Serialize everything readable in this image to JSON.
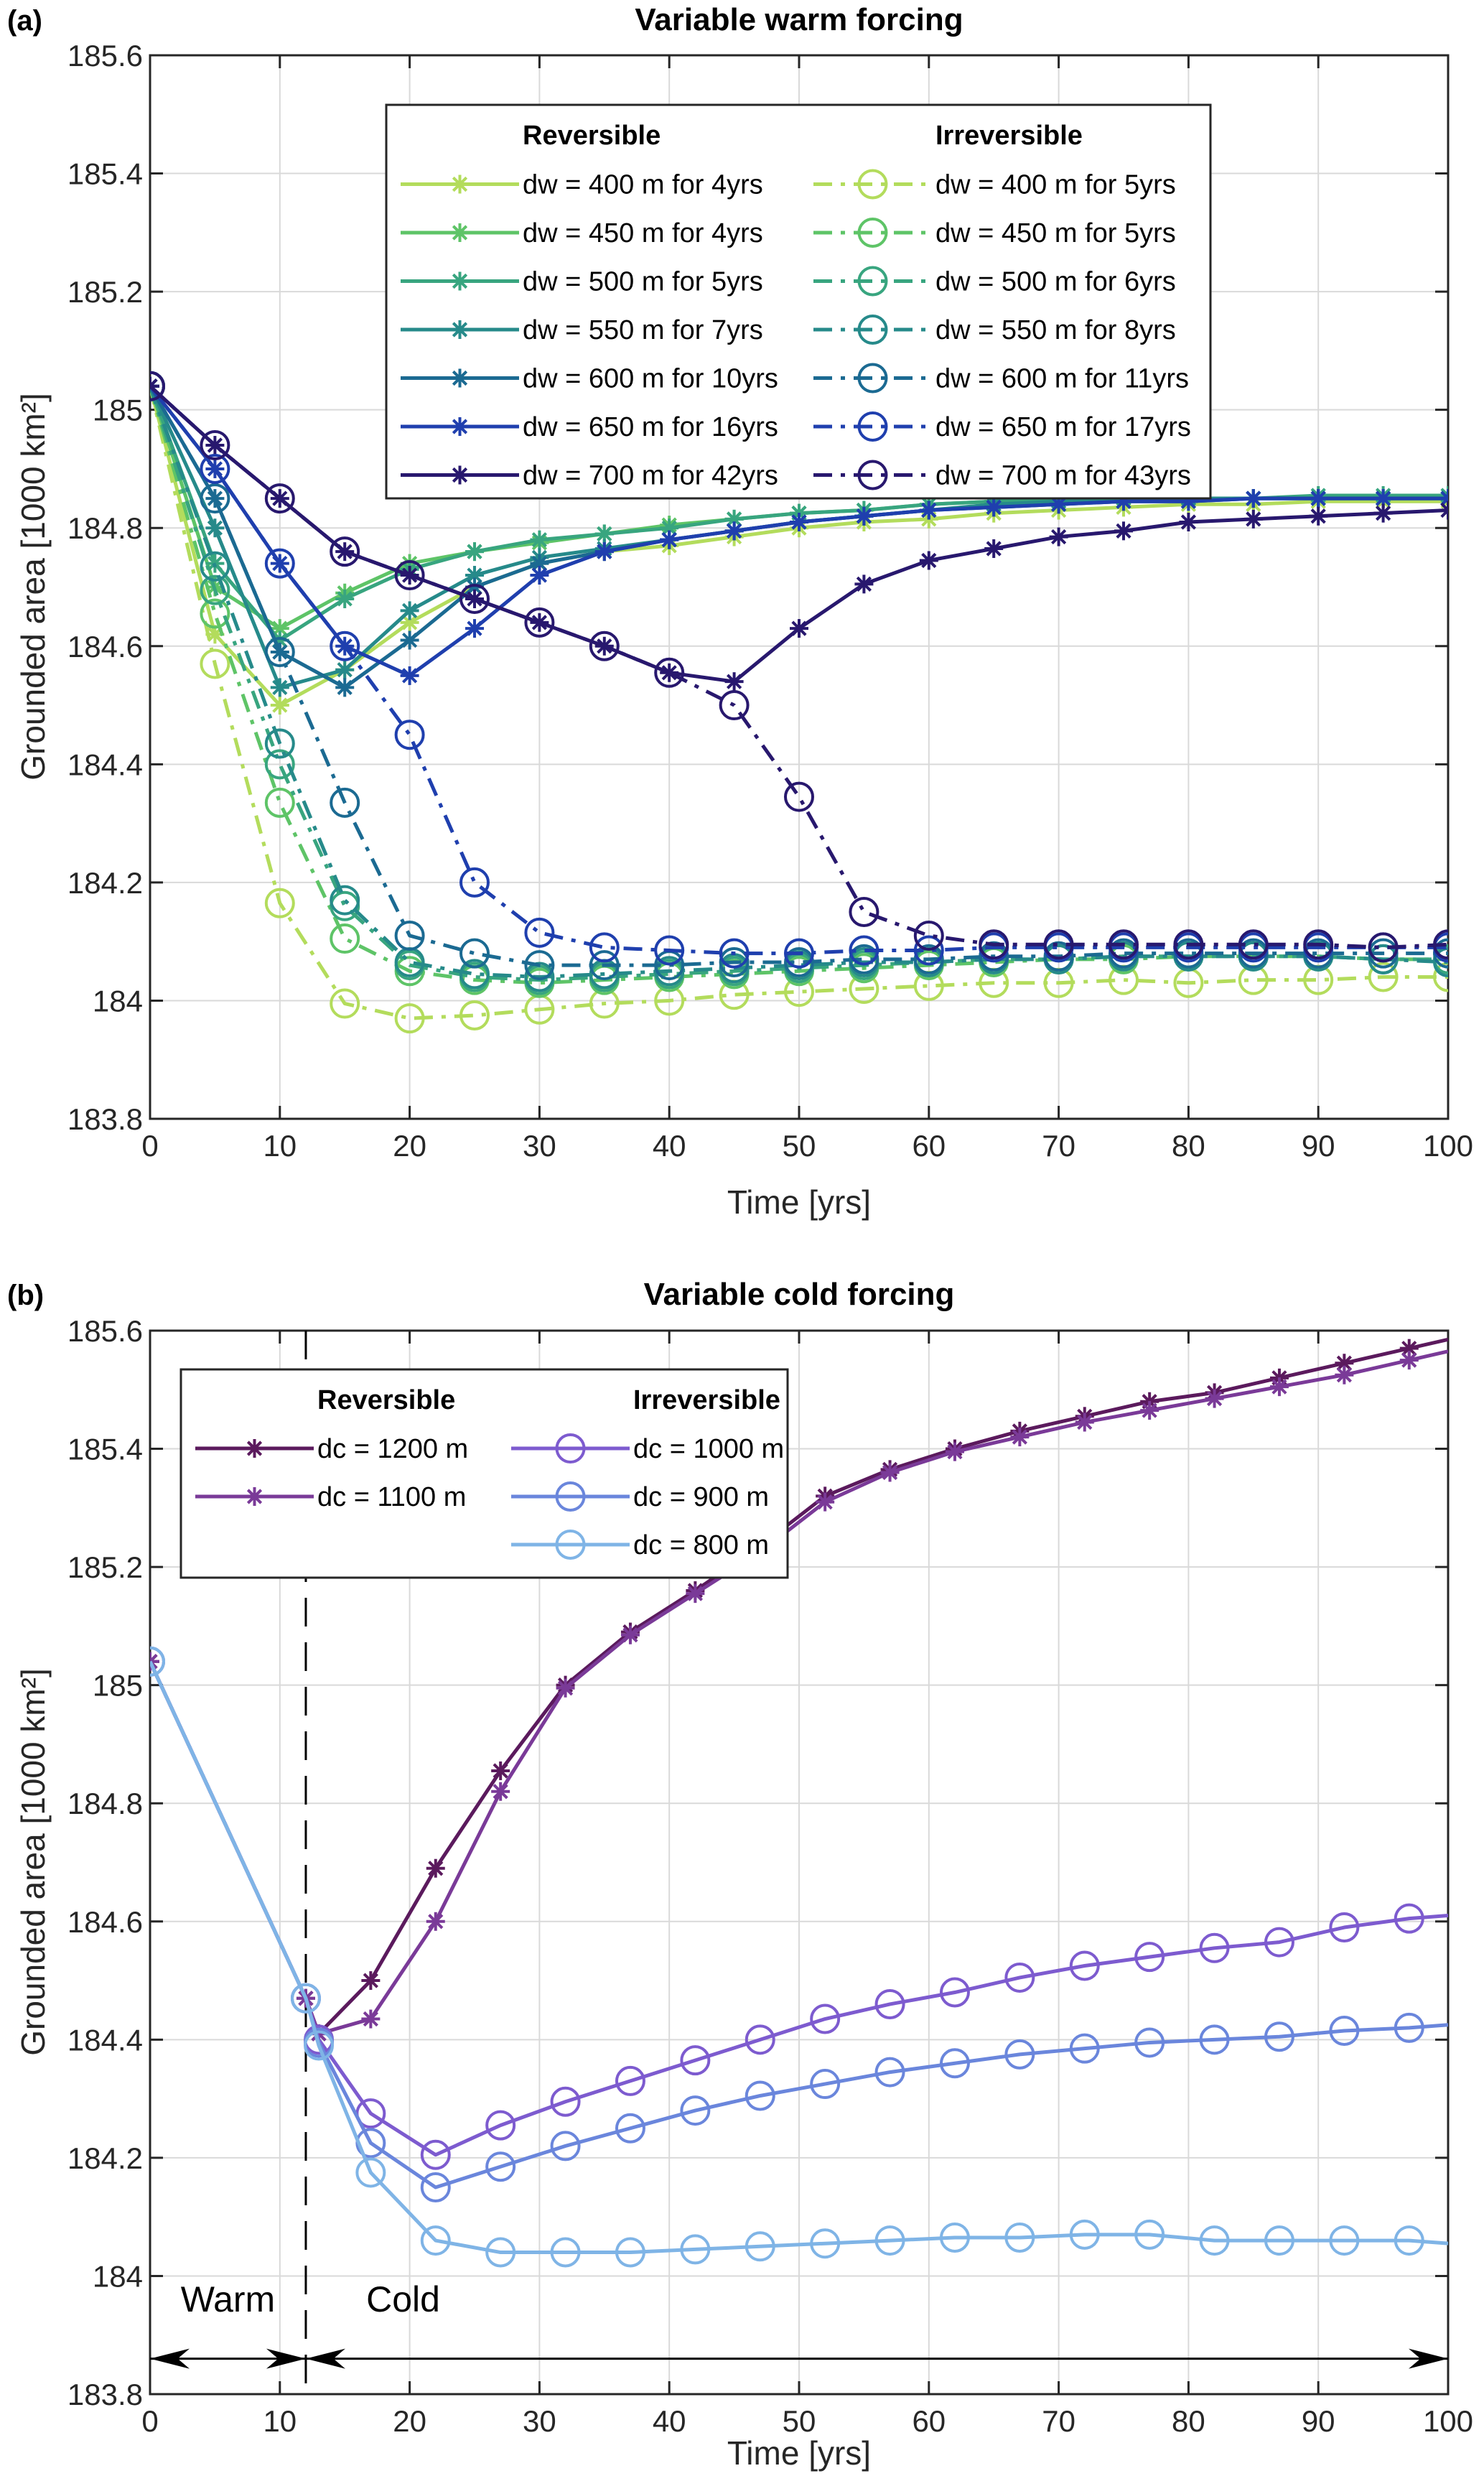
{
  "chart_data": [
    {
      "panel": "(a)",
      "type": "line",
      "title": "Variable warm forcing",
      "xlabel": "Time [yrs]",
      "ylabel": "Grounded area [1000 km²]",
      "xlim": [
        0,
        100
      ],
      "ylim": [
        183.8,
        185.6
      ],
      "xticks": [
        0,
        10,
        20,
        30,
        40,
        50,
        60,
        70,
        80,
        90,
        100
      ],
      "yticks": [
        183.8,
        184,
        184.2,
        184.4,
        184.6,
        184.8,
        185,
        185.2,
        185.4,
        185.6
      ],
      "ytick_labels": [
        "183.8",
        "184",
        "184.2",
        "184.4",
        "184.6",
        "184.8",
        "185",
        "185.2",
        "185.4",
        "185.6"
      ],
      "grid": true,
      "legend": {
        "placement": "top-center",
        "headers": [
          "Reversible",
          "Irreversible"
        ]
      },
      "x": [
        0,
        5,
        10,
        15,
        20,
        25,
        30,
        35,
        40,
        45,
        50,
        55,
        60,
        65,
        70,
        75,
        80,
        85,
        90,
        95,
        100
      ],
      "series": [
        {
          "name": "dw = 400 m for 4yrs",
          "group": "Reversible",
          "color": "#b3dc5c",
          "style": "solid",
          "marker": "asterisk",
          "values": [
            185.04,
            184.62,
            184.5,
            184.56,
            184.64,
            184.7,
            184.74,
            184.76,
            184.77,
            184.785,
            184.8,
            184.81,
            184.815,
            184.825,
            184.83,
            184.835,
            184.84,
            184.84,
            184.845,
            184.845,
            184.845
          ]
        },
        {
          "name": "dw = 450 m for 4yrs",
          "group": "Reversible",
          "color": "#5ec467",
          "style": "solid",
          "marker": "asterisk",
          "values": [
            185.04,
            184.7,
            184.63,
            184.69,
            184.74,
            184.76,
            184.775,
            184.79,
            184.805,
            184.815,
            184.825,
            184.83,
            184.84,
            184.845,
            184.85,
            184.85,
            184.85,
            184.85,
            184.85,
            184.85,
            184.85
          ]
        },
        {
          "name": "dw = 500 m for 5yrs",
          "group": "Reversible",
          "color": "#38a57f",
          "style": "solid",
          "marker": "asterisk",
          "values": [
            185.04,
            184.74,
            184.61,
            184.68,
            184.73,
            184.76,
            184.78,
            184.79,
            184.8,
            184.815,
            184.825,
            184.83,
            184.84,
            184.845,
            184.85,
            184.85,
            184.85,
            184.85,
            184.855,
            184.855,
            184.855
          ]
        },
        {
          "name": "dw = 550 m for 7yrs",
          "group": "Reversible",
          "color": "#268a8a",
          "style": "solid",
          "marker": "asterisk",
          "values": [
            185.04,
            184.8,
            184.53,
            184.56,
            184.66,
            184.72,
            184.75,
            184.765,
            184.78,
            184.795,
            184.81,
            184.82,
            184.83,
            184.84,
            184.845,
            184.845,
            184.85,
            184.85,
            184.85,
            184.85,
            184.85
          ]
        },
        {
          "name": "dw = 600 m for 10yrs",
          "group": "Reversible",
          "color": "#1b6a92",
          "style": "solid",
          "marker": "asterisk",
          "values": [
            185.04,
            184.85,
            184.59,
            184.53,
            184.61,
            184.7,
            184.74,
            184.76,
            184.78,
            184.795,
            184.81,
            184.82,
            184.83,
            184.835,
            184.84,
            184.845,
            184.845,
            184.85,
            184.85,
            184.85,
            184.85
          ]
        },
        {
          "name": "dw = 650 m for 16yrs",
          "group": "Reversible",
          "color": "#1f3fae",
          "style": "solid",
          "marker": "asterisk",
          "values": [
            185.04,
            184.9,
            184.74,
            184.6,
            184.55,
            184.63,
            184.72,
            184.76,
            184.78,
            184.795,
            184.81,
            184.82,
            184.83,
            184.835,
            184.84,
            184.845,
            184.845,
            184.85,
            184.85,
            184.85,
            184.85
          ]
        },
        {
          "name": "dw = 700 m for 42yrs",
          "group": "Reversible",
          "color": "#28186e",
          "style": "solid",
          "marker": "asterisk",
          "values": [
            185.04,
            184.94,
            184.85,
            184.76,
            184.72,
            184.68,
            184.64,
            184.6,
            184.555,
            184.54,
            184.63,
            184.705,
            184.745,
            184.765,
            184.785,
            184.795,
            184.81,
            184.815,
            184.82,
            184.825,
            184.83
          ]
        },
        {
          "name": "dw = 400 m for 5yrs",
          "group": "Irreversible",
          "color": "#b3dc5c",
          "style": "dashdot",
          "marker": "circle",
          "values": [
            185.04,
            184.57,
            184.165,
            183.995,
            183.97,
            183.975,
            183.985,
            183.995,
            184.0,
            184.01,
            184.015,
            184.02,
            184.025,
            184.03,
            184.03,
            184.035,
            184.03,
            184.035,
            184.035,
            184.04,
            184.04
          ]
        },
        {
          "name": "dw = 450 m for 5yrs",
          "group": "Irreversible",
          "color": "#5ec467",
          "style": "dashdot",
          "marker": "circle",
          "values": [
            185.04,
            184.655,
            184.335,
            184.105,
            184.05,
            184.035,
            184.03,
            184.035,
            184.04,
            184.045,
            184.05,
            184.055,
            184.06,
            184.065,
            184.07,
            184.07,
            184.075,
            184.075,
            184.075,
            184.07,
            184.07
          ]
        },
        {
          "name": "dw = 500 m for 6yrs",
          "group": "Irreversible",
          "color": "#38a57f",
          "style": "dashdot",
          "marker": "circle",
          "values": [
            185.04,
            184.695,
            184.4,
            184.16,
            184.06,
            184.04,
            184.035,
            184.04,
            184.045,
            184.05,
            184.055,
            184.06,
            184.065,
            184.07,
            184.07,
            184.075,
            184.075,
            184.075,
            184.075,
            184.07,
            184.07
          ]
        },
        {
          "name": "dw = 550 m for 8yrs",
          "group": "Irreversible",
          "color": "#268a8a",
          "style": "dashdot",
          "marker": "circle",
          "values": [
            185.04,
            184.735,
            184.435,
            184.17,
            184.065,
            184.045,
            184.04,
            184.045,
            184.05,
            184.055,
            184.06,
            184.065,
            184.065,
            184.07,
            184.07,
            184.075,
            184.075,
            184.075,
            184.075,
            184.07,
            184.065
          ]
        },
        {
          "name": "dw = 600 m for 11yrs",
          "group": "Irreversible",
          "color": "#1b6a92",
          "style": "dashdot",
          "marker": "circle",
          "values": [
            185.04,
            184.85,
            184.59,
            184.335,
            184.11,
            184.08,
            184.06,
            184.06,
            184.06,
            184.065,
            184.065,
            184.07,
            184.07,
            184.075,
            184.075,
            184.08,
            184.08,
            184.08,
            184.08,
            184.08,
            184.08
          ]
        },
        {
          "name": "dw = 650 m for 17yrs",
          "group": "Irreversible",
          "color": "#1f3fae",
          "style": "dashdot",
          "marker": "circle",
          "values": [
            185.04,
            184.9,
            184.74,
            184.6,
            184.45,
            184.2,
            184.115,
            184.09,
            184.085,
            184.08,
            184.08,
            184.085,
            184.085,
            184.09,
            184.09,
            184.09,
            184.09,
            184.09,
            184.09,
            184.09,
            184.09
          ]
        },
        {
          "name": "dw = 700 m for 43yrs",
          "group": "Irreversible",
          "color": "#28186e",
          "style": "dashdot",
          "marker": "circle",
          "values": [
            185.04,
            184.94,
            184.85,
            184.76,
            184.72,
            184.68,
            184.64,
            184.6,
            184.555,
            184.5,
            184.345,
            184.15,
            184.11,
            184.095,
            184.095,
            184.095,
            184.095,
            184.095,
            184.095,
            184.09,
            184.095
          ]
        }
      ]
    },
    {
      "panel": "(b)",
      "type": "line",
      "title": "Variable cold forcing",
      "xlabel": "Time [yrs]",
      "ylabel": "Grounded area [1000 km²]",
      "xlim": [
        0,
        100
      ],
      "ylim": [
        183.8,
        185.6
      ],
      "xticks": [
        0,
        10,
        20,
        30,
        40,
        50,
        60,
        70,
        80,
        90,
        100
      ],
      "yticks": [
        183.8,
        184,
        184.2,
        184.4,
        184.6,
        184.8,
        185,
        185.2,
        185.4,
        185.6
      ],
      "ytick_labels": [
        "183.8",
        "184",
        "184.2",
        "184.4",
        "184.6",
        "184.8",
        "185",
        "185.2",
        "185.4",
        "185.6"
      ],
      "grid": true,
      "legend": {
        "placement": "top-left",
        "headers": [
          "Reversible",
          "Irreversible"
        ]
      },
      "annotations": {
        "divider_x": 12,
        "warm_label": "Warm",
        "cold_label": "Cold",
        "arrow_y": 183.86
      },
      "x": [
        0,
        12,
        13,
        17,
        22,
        27,
        32,
        37,
        42,
        47,
        52,
        57,
        62,
        67,
        72,
        77,
        82,
        87,
        92,
        97,
        100
      ],
      "series": [
        {
          "name": "dc = 1200 m",
          "group": "Reversible",
          "color": "#5b1a5d",
          "style": "solid",
          "marker": "asterisk",
          "values": [
            185.04,
            184.47,
            184.41,
            184.5,
            184.69,
            184.855,
            185.0,
            185.09,
            185.16,
            185.235,
            185.32,
            185.365,
            185.4,
            185.43,
            185.455,
            185.48,
            185.495,
            185.52,
            185.545,
            185.57,
            185.585
          ]
        },
        {
          "name": "dc = 1100 m",
          "group": "Reversible",
          "color": "#7a3a98",
          "style": "solid",
          "marker": "asterisk",
          "values": [
            185.04,
            184.47,
            184.41,
            184.435,
            184.6,
            184.82,
            184.995,
            185.085,
            185.155,
            185.225,
            185.31,
            185.36,
            185.395,
            185.42,
            185.445,
            185.465,
            185.485,
            185.505,
            185.525,
            185.55,
            185.565
          ]
        },
        {
          "name": "dc = 1000 m",
          "group": "Irreversible",
          "color": "#7d5bcf",
          "style": "solid",
          "marker": "circle",
          "values": [
            185.04,
            184.47,
            184.4,
            184.275,
            184.205,
            184.255,
            184.295,
            184.33,
            184.365,
            184.4,
            184.435,
            184.46,
            184.48,
            184.505,
            184.525,
            184.54,
            184.555,
            184.565,
            184.59,
            184.605,
            184.61
          ]
        },
        {
          "name": "dc = 900 m",
          "group": "Irreversible",
          "color": "#6a86dc",
          "style": "solid",
          "marker": "circle",
          "values": [
            185.04,
            184.47,
            184.395,
            184.225,
            184.15,
            184.185,
            184.22,
            184.25,
            184.28,
            184.305,
            184.325,
            184.345,
            184.36,
            184.375,
            184.385,
            184.395,
            184.4,
            184.405,
            184.415,
            184.42,
            184.425
          ]
        },
        {
          "name": "dc = 800 m",
          "group": "Irreversible",
          "color": "#7fb4e6",
          "style": "solid",
          "marker": "circle",
          "values": [
            185.04,
            184.47,
            184.39,
            184.175,
            184.06,
            184.04,
            184.04,
            184.04,
            184.045,
            184.05,
            184.055,
            184.06,
            184.065,
            184.065,
            184.07,
            184.07,
            184.06,
            184.06,
            184.06,
            184.06,
            184.055
          ]
        }
      ]
    }
  ]
}
